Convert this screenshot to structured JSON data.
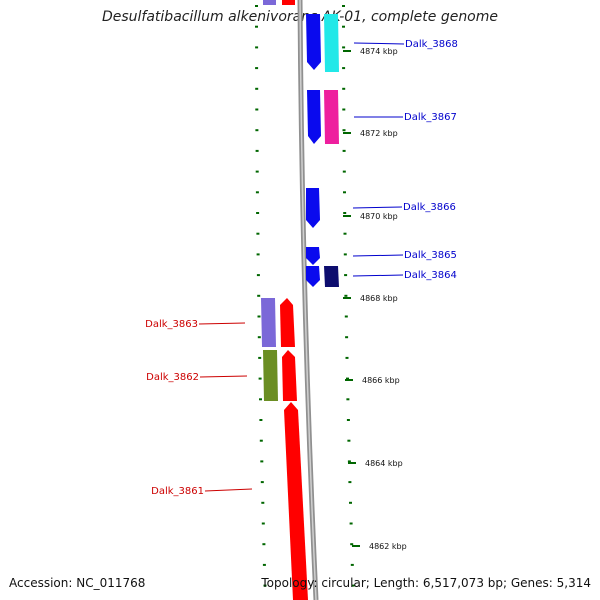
{
  "title": "Desulfatibacillum alkenivorans AK-01, complete genome",
  "footer": {
    "accession": "Accession: NC_011768",
    "topology": "Topology: circular; Length: 6,517,073 bp; Genes: 5,314"
  },
  "colors": {
    "forward_label": "#0000cc",
    "reverse_label": "#cc0000",
    "tick": "#006600",
    "backbone": "#888888"
  },
  "kbp_labels": [
    "4874 kbp",
    "4872 kbp",
    "4870 kbp",
    "4868 kbp",
    "4866 kbp",
    "4864 kbp",
    "4862 kbp"
  ],
  "genes": [
    {
      "name": "Dalk_3868",
      "strand": "forward"
    },
    {
      "name": "Dalk_3867",
      "strand": "forward"
    },
    {
      "name": "Dalk_3866",
      "strand": "forward"
    },
    {
      "name": "Dalk_3865",
      "strand": "forward"
    },
    {
      "name": "Dalk_3864",
      "strand": "forward"
    },
    {
      "name": "Dalk_3863",
      "strand": "reverse"
    },
    {
      "name": "Dalk_3862",
      "strand": "reverse"
    },
    {
      "name": "Dalk_3861",
      "strand": "reverse"
    }
  ]
}
